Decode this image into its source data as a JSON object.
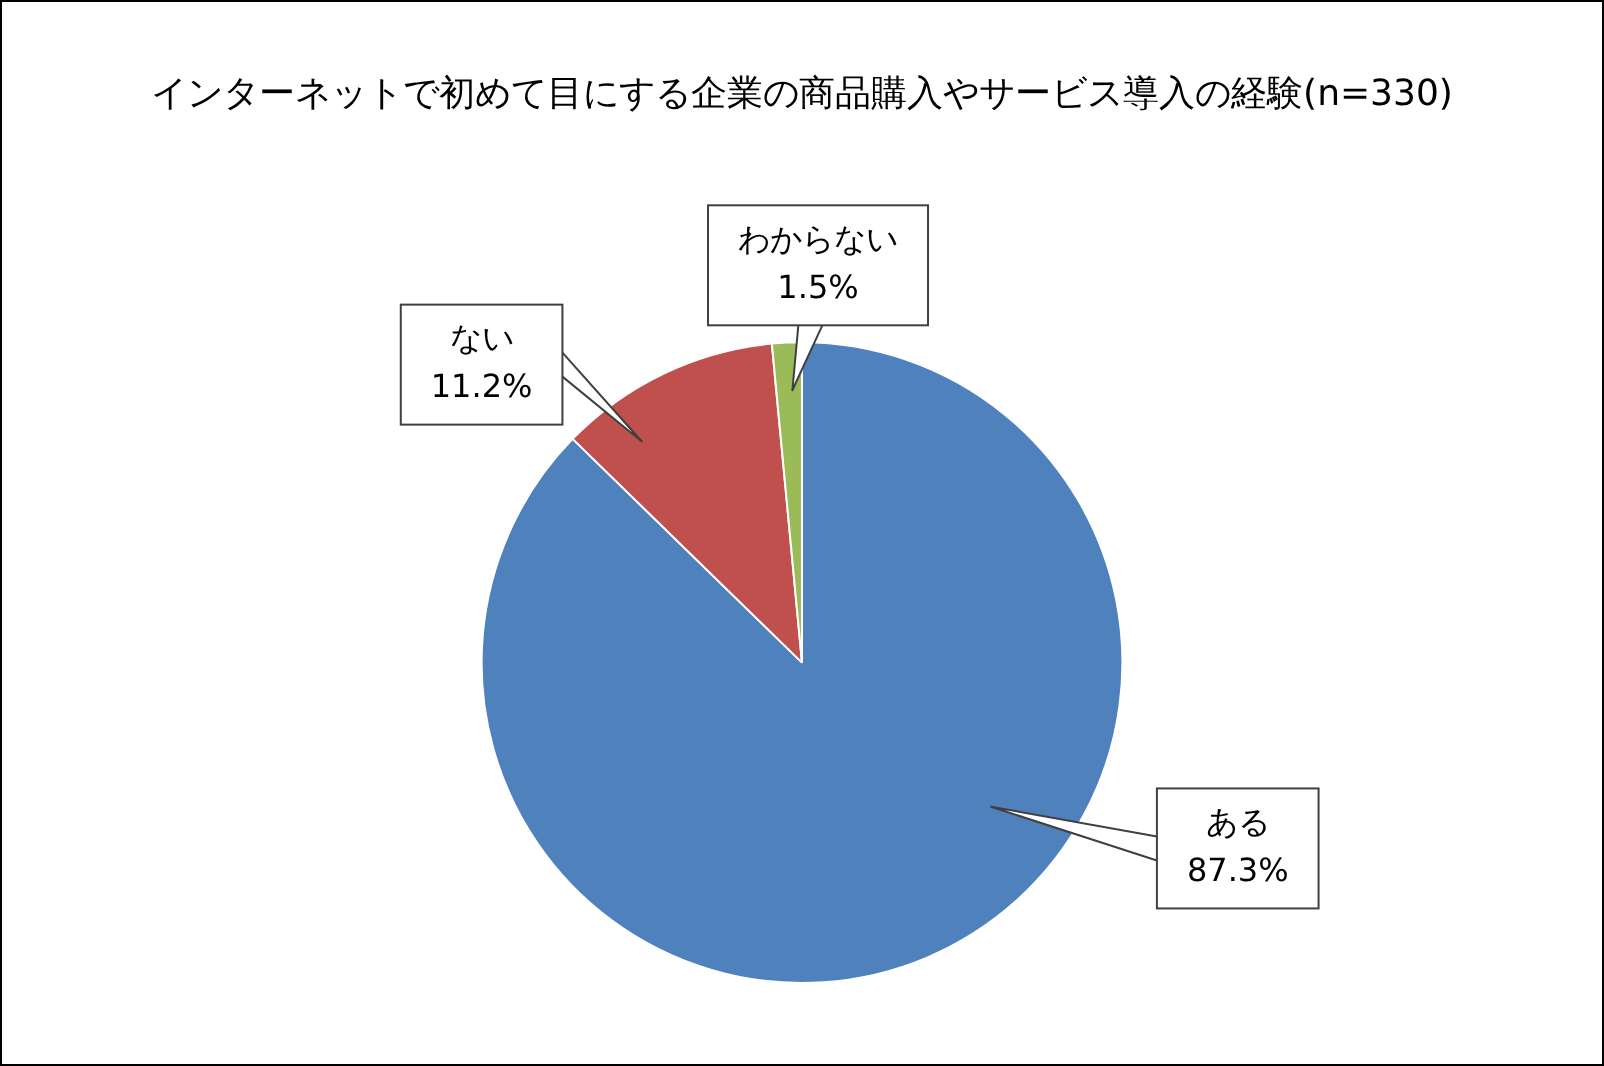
{
  "chart_data": {
    "type": "pie",
    "title": "インターネットで初めて目にする企業の商品購入やサービス導入の経験(n=330)",
    "categories": [
      "ある",
      "ない",
      "わからない"
    ],
    "values": [
      87.3,
      11.2,
      1.5
    ],
    "value_labels": [
      "87.3%",
      "11.2%",
      "1.5%"
    ],
    "colors": [
      "#4f81bd",
      "#c0504d",
      "#9bbb59"
    ],
    "legend": false
  }
}
